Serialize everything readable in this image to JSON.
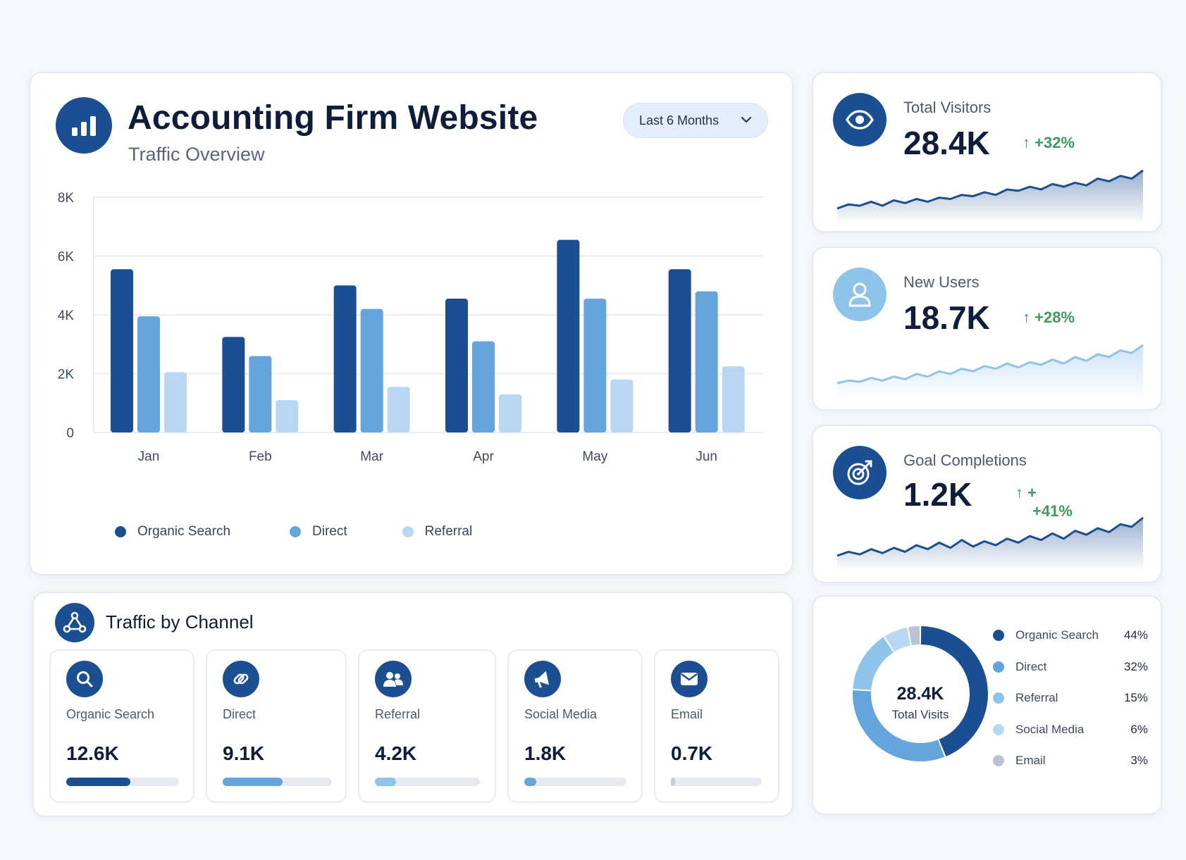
{
  "header": {
    "title": "Accounting Firm Website",
    "subtitle": "Traffic Overview",
    "period": "Last 6 Months"
  },
  "colors": {
    "organic": "#1b4f91",
    "direct": "#63a5dc",
    "referral": "#b8d7f2",
    "social": "#8ec3ea",
    "email": "#b9c3d3",
    "positive": "#3d9a5a",
    "accent_light": "#8ec3ea"
  },
  "chart_data": {
    "type": "bar",
    "categories": [
      "Jan",
      "Feb",
      "Mar",
      "Apr",
      "May",
      "Jun"
    ],
    "series": [
      {
        "name": "Organic Search",
        "values": [
          5550,
          3250,
          5000,
          4550,
          6550,
          5550
        ]
      },
      {
        "name": "Direct",
        "values": [
          3950,
          2600,
          4200,
          3100,
          4550,
          4800
        ]
      },
      {
        "name": "Referral",
        "values": [
          2050,
          1100,
          1550,
          1300,
          1800,
          2250
        ]
      }
    ],
    "ylim": [
      0,
      8000
    ],
    "yticks": [
      "0",
      "2K",
      "4K",
      "6K",
      "8K"
    ],
    "ytick_values": [
      0,
      2000,
      4000,
      6000,
      8000
    ],
    "grid": true,
    "legend": "bottom"
  },
  "stats": [
    {
      "label": "Total Visitors",
      "value": "28.4K",
      "change": "+32%",
      "icon": "eye-icon",
      "trend": [
        4,
        7,
        6,
        9,
        6,
        10,
        8,
        11,
        9,
        12,
        11,
        14,
        13,
        16,
        14,
        18,
        17,
        20,
        18,
        22,
        20,
        23,
        21,
        26,
        24,
        28,
        26,
        32
      ]
    },
    {
      "label": "New Users",
      "value": "18.7K",
      "change": "+28%",
      "icon": "user-icon",
      "trend": [
        4,
        6,
        5,
        8,
        6,
        9,
        7,
        11,
        9,
        13,
        11,
        15,
        13,
        17,
        15,
        19,
        16,
        20,
        18,
        22,
        19,
        24,
        21,
        26,
        24,
        29,
        27,
        33
      ]
    },
    {
      "label": "Goal Completions",
      "value": "1.2K",
      "change_line1": "+",
      "change_line2": "+41%",
      "icon": "target-icon",
      "trend": [
        6,
        9,
        7,
        11,
        8,
        12,
        9,
        14,
        11,
        16,
        12,
        18,
        13,
        17,
        14,
        19,
        16,
        21,
        18,
        23,
        19,
        25,
        22,
        27,
        24,
        30,
        28,
        35
      ]
    }
  ],
  "channels": {
    "title": "Traffic by Channel",
    "items": [
      {
        "name": "Organic Search",
        "value": "12.6K",
        "share": 0.57,
        "color": "#1b4f91",
        "icon": "search-icon"
      },
      {
        "name": "Direct",
        "value": "9.1K",
        "share": 0.55,
        "color": "#63a5dc",
        "icon": "link-icon"
      },
      {
        "name": "Referral",
        "value": "4.2K",
        "share": 0.2,
        "color": "#8ec3ea",
        "icon": "people-icon"
      },
      {
        "name": "Social Media",
        "value": "1.8K",
        "share": 0.12,
        "color": "#63a5dc",
        "icon": "megaphone-icon"
      },
      {
        "name": "Email",
        "value": "0.7K",
        "share": 0.05,
        "color": "#c5cdd9",
        "icon": "mail-icon"
      }
    ]
  },
  "donut": {
    "center_value": "28.4K",
    "center_label": "Total Visits",
    "slices": [
      {
        "name": "Organic Search",
        "pct": "44%",
        "value": 44,
        "color": "#1b4f91"
      },
      {
        "name": "Direct",
        "pct": "32%",
        "value": 32,
        "color": "#63a5dc"
      },
      {
        "name": "Referral",
        "pct": "15%",
        "value": 15,
        "color": "#8ec3ea"
      },
      {
        "name": "Social Media",
        "pct": "6%",
        "value": 6,
        "color": "#b8d7f2"
      },
      {
        "name": "Email",
        "pct": "3%",
        "value": 3,
        "color": "#b9c3d3"
      }
    ]
  }
}
